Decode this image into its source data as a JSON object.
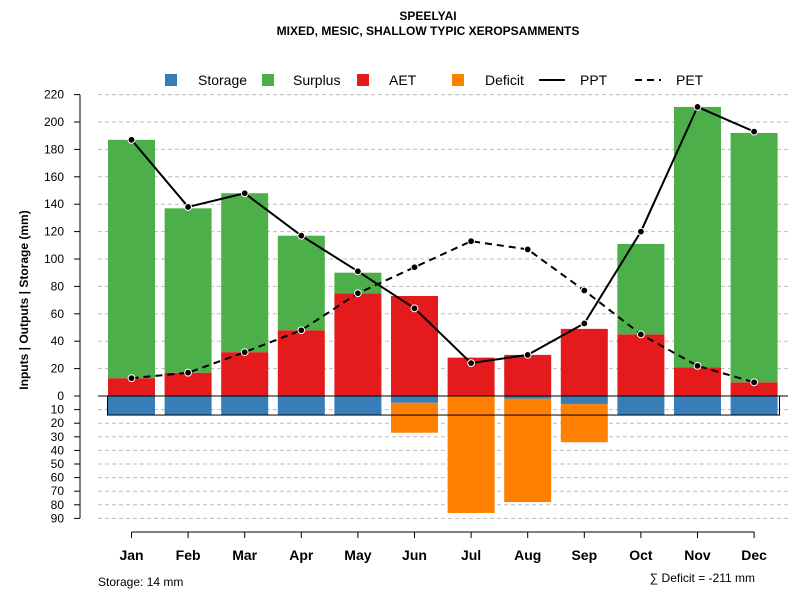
{
  "chart_data": {
    "type": "bar",
    "title": "SPEELYAI",
    "subtitle": "MIXED, MESIC, SHALLOW TYPIC XEROPSAMMENTS",
    "ylabel": "Inputs | Outputs | Storage    (mm)",
    "ylim": [
      -90,
      220
    ],
    "grid": true,
    "legend_position": "top",
    "categories": [
      "Jan",
      "Feb",
      "Mar",
      "Apr",
      "May",
      "Jun",
      "Jul",
      "Aug",
      "Sep",
      "Oct",
      "Nov",
      "Dec"
    ],
    "legend": [
      {
        "name": "Storage",
        "kind": "square",
        "color": "#377EB8"
      },
      {
        "name": "Surplus",
        "kind": "square",
        "color": "#4DAF4A"
      },
      {
        "name": "AET",
        "kind": "square",
        "color": "#E41A1C"
      },
      {
        "name": "Deficit",
        "kind": "square",
        "color": "#FF7F00"
      },
      {
        "name": "PPT",
        "kind": "solid-line",
        "color": "#000000"
      },
      {
        "name": "PET",
        "kind": "dashed-line",
        "color": "#000000"
      }
    ],
    "y_ticks_positive": [
      "0",
      "20",
      "40",
      "60",
      "80",
      "100",
      "120",
      "140",
      "160",
      "180",
      "200",
      "220"
    ],
    "y_ticks_negative": [
      "10",
      "20",
      "30",
      "40",
      "50",
      "60",
      "70",
      "80",
      "90"
    ],
    "series": [
      {
        "name": "AET",
        "color": "#E41A1C",
        "values": [
          13,
          17,
          32,
          48,
          75,
          73,
          28,
          30,
          49,
          45,
          21,
          10
        ]
      },
      {
        "name": "Surplus",
        "color": "#4DAF4A",
        "values": [
          174,
          120,
          116,
          69,
          15,
          0,
          0,
          0,
          0,
          66,
          190,
          182
        ]
      },
      {
        "name": "Storage",
        "color": "#377EB8",
        "values": [
          14,
          14,
          14,
          14,
          14,
          5,
          0,
          2,
          6,
          14,
          14,
          14
        ]
      },
      {
        "name": "Deficit",
        "color": "#FF7F00",
        "values": [
          0,
          0,
          0,
          0,
          0,
          22,
          86,
          76,
          28,
          0,
          0,
          0
        ]
      },
      {
        "name": "PPT",
        "color": "#000000",
        "values": [
          187,
          138,
          148,
          117,
          91,
          64,
          24,
          30,
          53,
          120,
          211,
          193
        ]
      },
      {
        "name": "PET",
        "color": "#000000",
        "values": [
          13,
          17,
          32,
          48,
          75,
          94,
          113,
          107,
          77,
          45,
          22,
          10
        ]
      }
    ],
    "storage_capacity": 14,
    "footer_left": "Storage: 14 mm",
    "footer_right": "∑ Deficit = -211 mm"
  }
}
